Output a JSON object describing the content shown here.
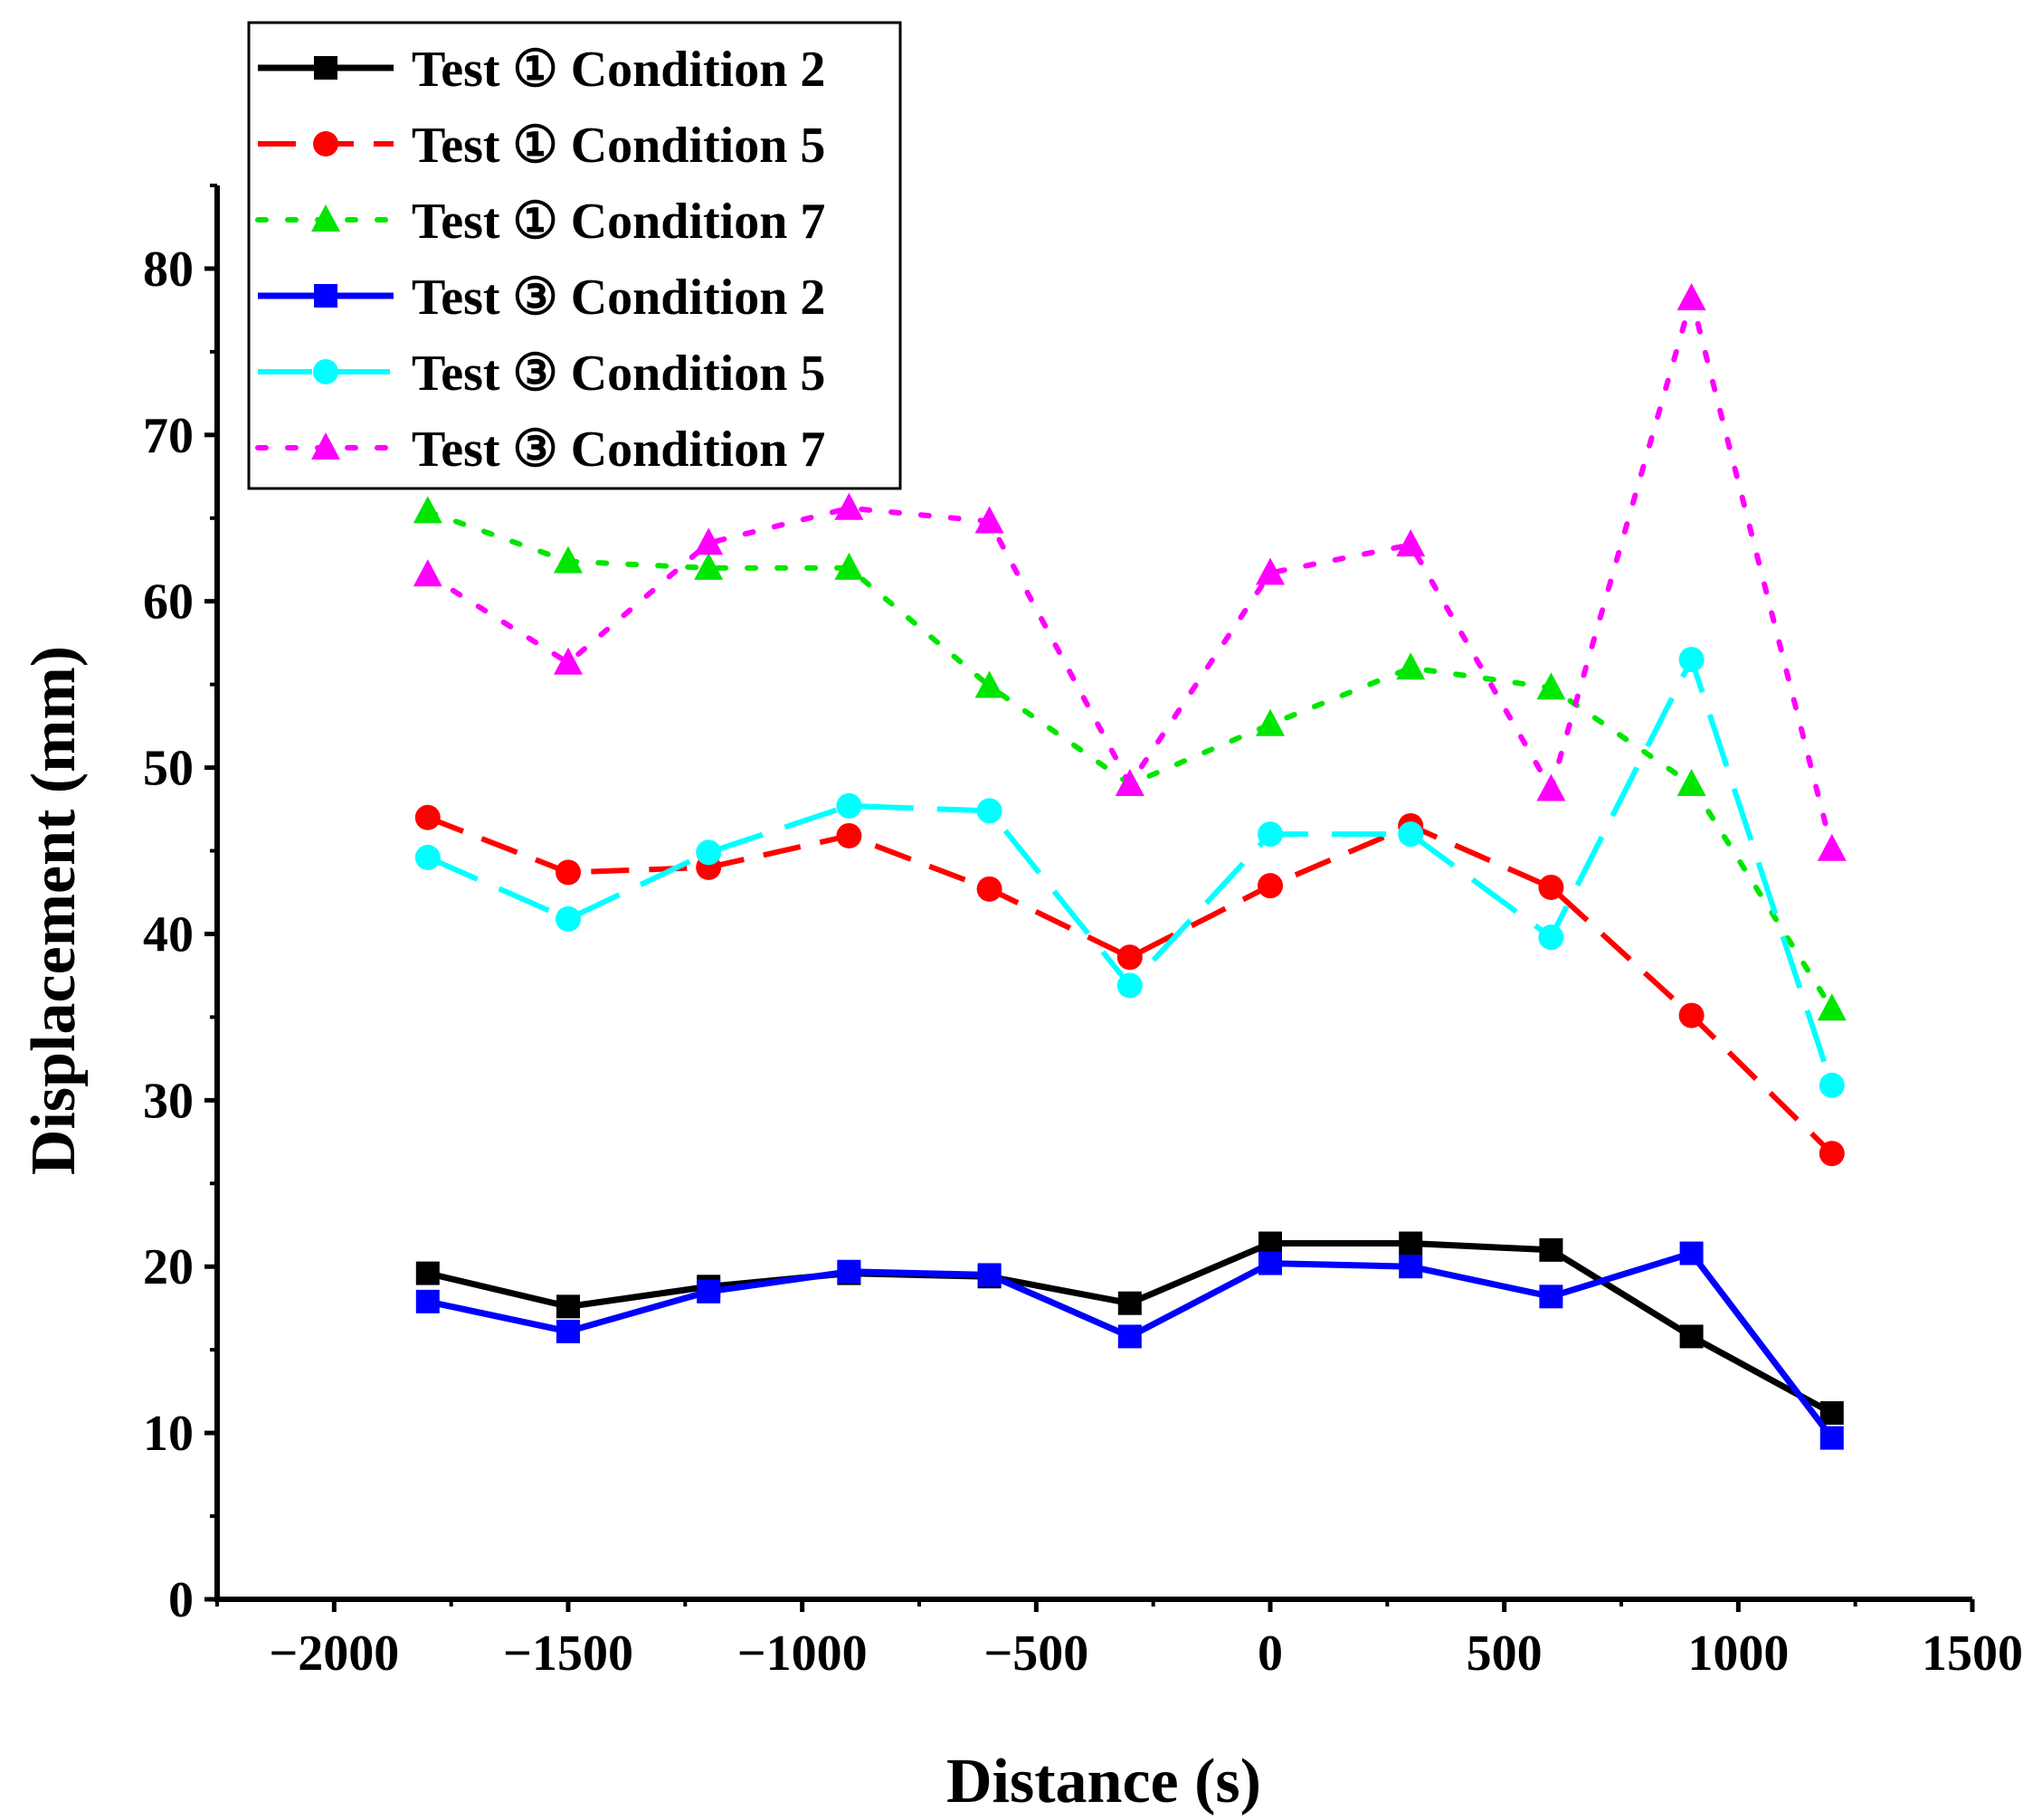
{
  "chart_data": {
    "type": "line",
    "title": "",
    "xlabel": "Distance (s)",
    "ylabel": "Displacement (mm)",
    "xlim": [
      -2250,
      1500
    ],
    "ylim": [
      0,
      85
    ],
    "xticks": [
      -2000,
      -1500,
      -1000,
      -500,
      0,
      500,
      1000,
      1500
    ],
    "xtick_labels": [
      "−2000",
      "−1500",
      "−1000",
      "−500",
      "0",
      "500",
      "1000",
      "1500"
    ],
    "yticks": [
      0,
      10,
      20,
      30,
      40,
      50,
      60,
      70,
      80
    ],
    "ytick_labels": [
      "0",
      "10",
      "20",
      "30",
      "40",
      "50",
      "60",
      "70",
      "80"
    ],
    "grid": false,
    "legend_position": "top-left",
    "x": [
      -1800,
      -1500,
      -1200,
      -900,
      -600,
      -300,
      0,
      300,
      600,
      900,
      1200
    ],
    "series": [
      {
        "name": "Test ① Condition 2",
        "color": "#000000",
        "marker": "square",
        "dash": "solid",
        "values": [
          19.6,
          17.6,
          18.8,
          19.6,
          19.4,
          17.8,
          21.4,
          21.4,
          21.0,
          15.8,
          11.2
        ]
      },
      {
        "name": "Test ① Condition 5",
        "color": "#ff0000",
        "marker": "circle",
        "dash": "dash",
        "values": [
          47.0,
          43.7,
          44.0,
          45.9,
          42.7,
          38.6,
          42.9,
          46.5,
          42.8,
          35.1,
          26.8
        ]
      },
      {
        "name": "Test ① Condition 7",
        "color": "#00e600",
        "marker": "triangle",
        "dash": "dot",
        "values": [
          65.4,
          62.4,
          62.0,
          62.0,
          54.9,
          49.0,
          52.6,
          56.0,
          54.8,
          49.0,
          35.5
        ]
      },
      {
        "name": "Test ③ Condition 2",
        "color": "#0000ff",
        "marker": "square",
        "dash": "solid",
        "values": [
          17.9,
          16.1,
          18.5,
          19.7,
          19.5,
          15.8,
          20.2,
          20.0,
          18.2,
          20.8,
          9.7
        ]
      },
      {
        "name": "Test ③ Condition 5",
        "color": "#00ffff",
        "marker": "circle",
        "dash": "longdash",
        "values": [
          44.6,
          40.9,
          44.9,
          47.7,
          47.4,
          36.9,
          46.0,
          46.0,
          39.8,
          56.5,
          30.9
        ]
      },
      {
        "name": "Test ③ Condition 7",
        "color": "#ff00ff",
        "marker": "triangle",
        "dash": "dot",
        "values": [
          61.6,
          56.3,
          63.5,
          65.6,
          64.8,
          49.0,
          61.7,
          63.4,
          48.7,
          78.2,
          45.1
        ]
      }
    ]
  }
}
